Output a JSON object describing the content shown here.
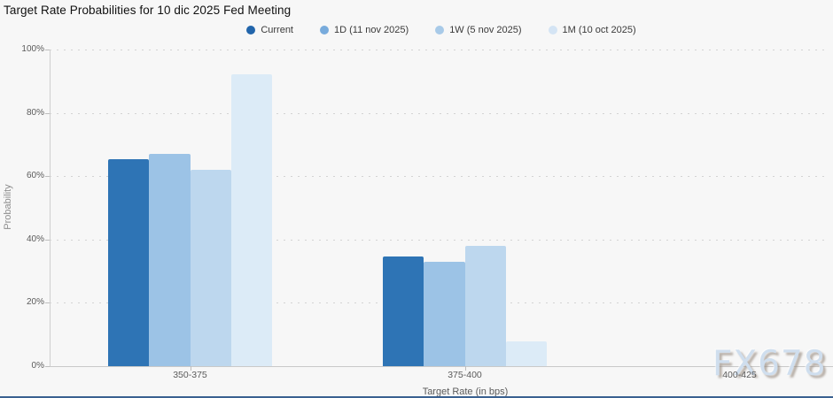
{
  "title": "Target Rate Probabilities for 10 dic 2025 Fed Meeting",
  "watermark": "FX678",
  "legend": [
    {
      "label": "Current",
      "marker_color": "#2265ab"
    },
    {
      "label": "1D (11 nov 2025)",
      "marker_color": "#78abdc"
    },
    {
      "label": "1W (5 nov 2025)",
      "marker_color": "#a8cae8"
    },
    {
      "label": "1M (10 oct 2025)",
      "marker_color": "#d4e4f4"
    }
  ],
  "chart_data": {
    "type": "bar",
    "title": "Target Rate Probabilities for 10 dic 2025 Fed Meeting",
    "categories": [
      "350-375",
      "375-400",
      "400-425"
    ],
    "series": [
      {
        "name": "Current",
        "color": "#2e74b5",
        "values": [
          65.5,
          34.5,
          0
        ]
      },
      {
        "name": "1D (11 nov 2025)",
        "color": "#9cc3e6",
        "values": [
          67.1,
          32.9,
          0
        ]
      },
      {
        "name": "1W (5 nov 2025)",
        "color": "#bdd7ee",
        "values": [
          62.0,
          38.0,
          0
        ]
      },
      {
        "name": "1M (10 oct 2025)",
        "color": "#dcebf7",
        "values": [
          92.3,
          7.7,
          0
        ]
      }
    ],
    "xlabel": "Target Rate (in bps)",
    "ylabel": "Probability",
    "ylim": [
      0,
      100
    ],
    "yticks": [
      "0%",
      "20%",
      "40%",
      "60%",
      "80%",
      "100%"
    ],
    "grid": "dotted-horizontal",
    "legend_position": "top"
  }
}
